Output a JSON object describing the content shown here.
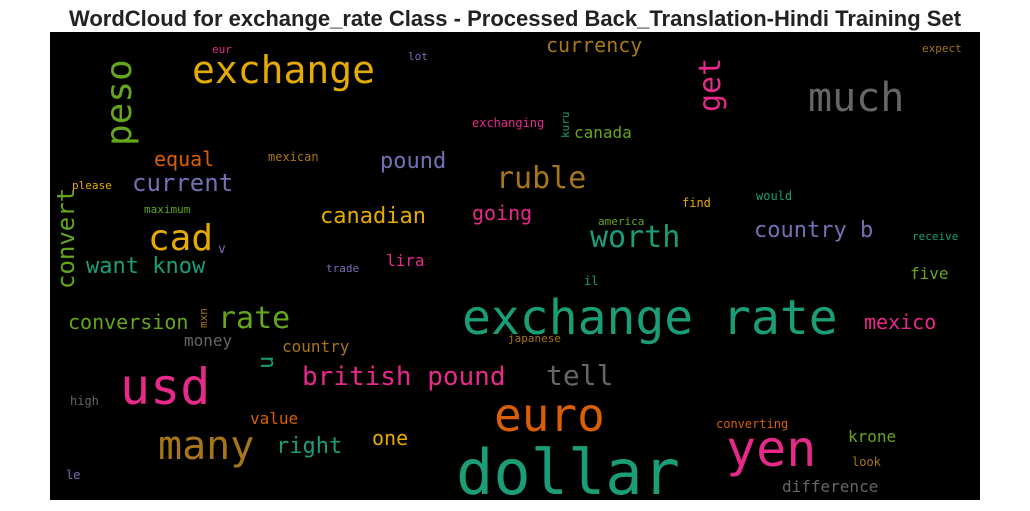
{
  "title": "WordCloud for exchange_rate Class - Processed Back_Translation-Hindi Training Set",
  "colors": {
    "background": "#000000",
    "teal": "#1b9e77",
    "orange": "#d95f02",
    "purple": "#7570b3",
    "pink": "#e7298a",
    "green": "#66a61e",
    "gold": "#e6ab02",
    "brown": "#a6761d",
    "gray": "#666666"
  },
  "words": [
    {
      "text": "exchange rate",
      "color": "teal"
    },
    {
      "text": "dollar",
      "color": "teal"
    },
    {
      "text": "usd",
      "color": "pink"
    },
    {
      "text": "euro",
      "color": "orange"
    },
    {
      "text": "yen",
      "color": "pink"
    },
    {
      "text": "many",
      "color": "brown"
    },
    {
      "text": "much",
      "color": "gray"
    },
    {
      "text": "exchange",
      "color": "gold"
    },
    {
      "text": "peso",
      "color": "green"
    },
    {
      "text": "cad",
      "color": "gold"
    },
    {
      "text": "rate",
      "color": "green"
    },
    {
      "text": "worth",
      "color": "teal"
    },
    {
      "text": "ruble",
      "color": "brown"
    },
    {
      "text": "get",
      "color": "pink"
    },
    {
      "text": "british pound",
      "color": "pink"
    },
    {
      "text": "tell",
      "color": "gray"
    },
    {
      "text": "current",
      "color": "purple"
    },
    {
      "text": "convert",
      "color": "green"
    },
    {
      "text": "want know",
      "color": "teal"
    },
    {
      "text": "country b",
      "color": "purple"
    },
    {
      "text": "canadian",
      "color": "gold"
    },
    {
      "text": "pound",
      "color": "purple"
    },
    {
      "text": "conversion",
      "color": "green"
    },
    {
      "text": "mexico",
      "color": "pink"
    },
    {
      "text": "right",
      "color": "teal"
    },
    {
      "text": "currency",
      "color": "brown"
    },
    {
      "text": "going",
      "color": "pink"
    },
    {
      "text": "equal",
      "color": "orange"
    },
    {
      "text": "one",
      "color": "gold"
    },
    {
      "text": "u",
      "color": "teal"
    },
    {
      "text": "krone",
      "color": "green"
    },
    {
      "text": "difference",
      "color": "gray"
    },
    {
      "text": "country",
      "color": "brown"
    },
    {
      "text": "money",
      "color": "gray"
    },
    {
      "text": "value",
      "color": "orange"
    },
    {
      "text": "lira",
      "color": "pink"
    },
    {
      "text": "canada",
      "color": "green"
    },
    {
      "text": "five",
      "color": "green"
    },
    {
      "text": "converting",
      "color": "orange"
    },
    {
      "text": "mexican",
      "color": "brown"
    },
    {
      "text": "exchanging",
      "color": "pink"
    },
    {
      "text": "eur",
      "color": "pink"
    },
    {
      "text": "lot",
      "color": "purple"
    },
    {
      "text": "kuru",
      "color": "teal"
    },
    {
      "text": "expect",
      "color": "brown"
    },
    {
      "text": "please",
      "color": "gold"
    },
    {
      "text": "maximum",
      "color": "green"
    },
    {
      "text": "v",
      "color": "purple"
    },
    {
      "text": "find",
      "color": "gold"
    },
    {
      "text": "would",
      "color": "teal"
    },
    {
      "text": "america",
      "color": "green"
    },
    {
      "text": "receive",
      "color": "teal"
    },
    {
      "text": "trade",
      "color": "purple"
    },
    {
      "text": "il",
      "color": "teal"
    },
    {
      "text": "mxn",
      "color": "brown"
    },
    {
      "text": "japanese",
      "color": "brown"
    },
    {
      "text": "high",
      "color": "gray"
    },
    {
      "text": "look",
      "color": "brown"
    },
    {
      "text": "le",
      "color": "purple"
    }
  ]
}
